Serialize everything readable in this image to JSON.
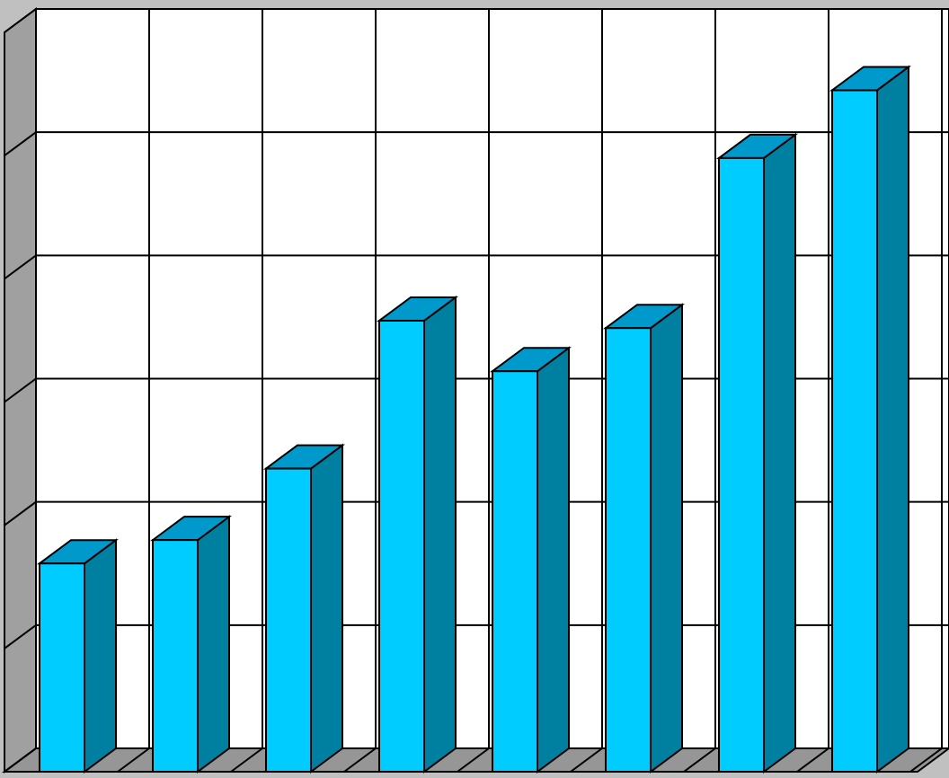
{
  "chart_data": {
    "type": "bar3d",
    "values": [
      1.69,
      1.88,
      2.46,
      3.66,
      3.25,
      3.6,
      4.98,
      5.53
    ],
    "color": "#00ccff",
    "side_color": "#0080a0",
    "top_color": "#0099cc",
    "ylim": [
      0,
      6
    ],
    "yticks": [
      0,
      1,
      2,
      3,
      4,
      5,
      6
    ],
    "grid": true
  }
}
